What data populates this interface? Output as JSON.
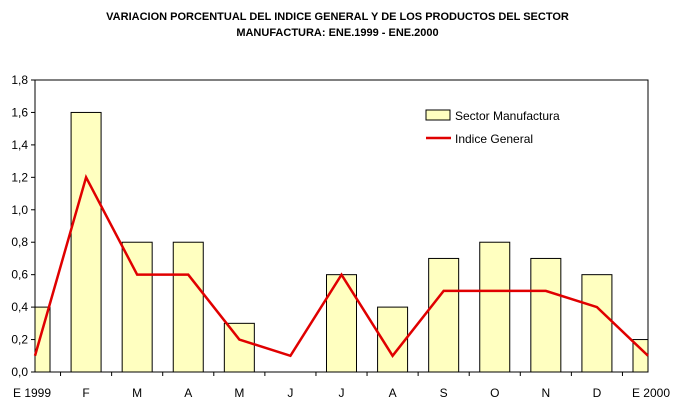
{
  "chart_data": {
    "type": "bar",
    "title": [
      "VARIACION PORCENTUAL DEL INDICE GENERAL Y DE LOS PRODUCTOS DEL SECTOR",
      "MANUFACTURA: ENE.1999 - ENE.2000"
    ],
    "categories": [
      "E 1999",
      "F",
      "M",
      "A",
      "M",
      "J",
      "J",
      "A",
      "S",
      "O",
      "N",
      "D",
      "E 2000"
    ],
    "series": [
      {
        "name": "Sector Manufactura",
        "kind": "bar",
        "values": [
          0.4,
          1.6,
          0.8,
          0.8,
          0.3,
          0.0,
          0.6,
          0.4,
          0.7,
          0.8,
          0.7,
          0.6,
          0.2
        ]
      },
      {
        "name": "Indice General",
        "kind": "line",
        "values": [
          0.1,
          1.2,
          0.6,
          0.6,
          0.2,
          0.1,
          0.6,
          0.1,
          0.5,
          0.5,
          0.5,
          0.4,
          0.1
        ]
      }
    ],
    "ylim": [
      0,
      1.8
    ],
    "ytick_step": 0.2,
    "yticks": [
      "0,0",
      "0,2",
      "0,4",
      "0,6",
      "0,8",
      "1,0",
      "1,2",
      "1,4",
      "1,6",
      "1,8"
    ],
    "xlabel": "",
    "ylabel": "",
    "grid": false,
    "legend": "top-right",
    "colors": {
      "bar_fill": "#ffffc0",
      "bar_stroke": "#000000",
      "line": "#e00000"
    }
  }
}
